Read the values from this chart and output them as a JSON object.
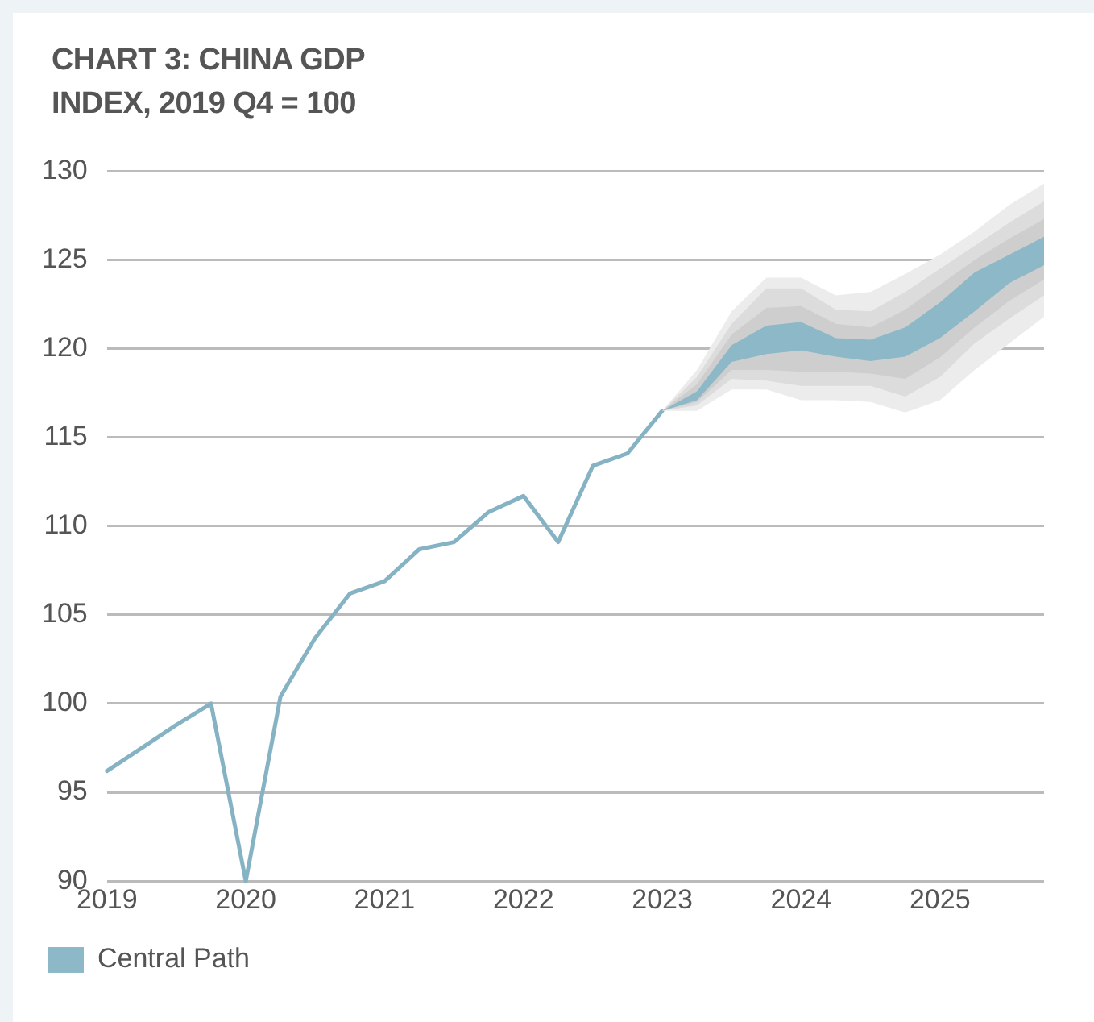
{
  "chart_data": {
    "type": "line",
    "title": "CHART 3: CHINA GDP INDEX, 2019 Q4 = 100",
    "xlim": [
      2019,
      2025.75
    ],
    "xticks": [
      2019,
      2020,
      2021,
      2022,
      2023,
      2024,
      2025
    ],
    "ylim": [
      90,
      130
    ],
    "yticks": [
      90,
      95,
      100,
      105,
      110,
      115,
      120,
      125,
      130
    ],
    "grid": "y",
    "legend": "bottom left",
    "series": [
      {
        "color": "#ececec",
        "x": [
          2023,
          2023.25,
          2023.5,
          2023.75,
          2024,
          2024.25,
          2024.5,
          2024.75,
          2025,
          2025.25,
          2025.5,
          2025.75
        ],
        "values": [
          null,
          null,
          null,
          null,
          null,
          null,
          null,
          null,
          null,
          null,
          null,
          null
        ],
        "lower": [
          116.5,
          116.5,
          117.7,
          117.7,
          117.1,
          117.1,
          117.0,
          116.4,
          117.1,
          118.8,
          120.3,
          121.8
        ],
        "upper": [
          116.5,
          118.8,
          122.1,
          124.0,
          124.0,
          123.0,
          123.2,
          124.2,
          125.3,
          126.6,
          128.1,
          129.3
        ]
      },
      {
        "color": "#dcdcdc",
        "x": [
          2023,
          2023.25,
          2023.5,
          2023.75,
          2024,
          2024.25,
          2024.5,
          2024.75,
          2025,
          2025.25,
          2025.5,
          2025.75
        ],
        "values": [
          null,
          null,
          null,
          null,
          null,
          null,
          null,
          null,
          null,
          null,
          null,
          null
        ],
        "lower": [
          116.5,
          116.8,
          118.3,
          118.2,
          117.9,
          117.9,
          117.9,
          117.3,
          118.4,
          120.3,
          121.7,
          123.0
        ],
        "upper": [
          116.5,
          118.4,
          121.4,
          123.4,
          123.4,
          122.2,
          122.1,
          123.2,
          124.5,
          125.8,
          127.1,
          128.3
        ]
      },
      {
        "color": "#cecece",
        "x": [
          2023,
          2023.25,
          2023.5,
          2023.75,
          2024,
          2024.25,
          2024.5,
          2024.75,
          2025,
          2025.25,
          2025.5,
          2025.75
        ],
        "values": [
          null,
          null,
          null,
          null,
          null,
          null,
          null,
          null,
          null,
          null,
          null,
          null
        ],
        "lower": [
          116.5,
          117.0,
          118.8,
          118.8,
          118.7,
          118.7,
          118.6,
          118.3,
          119.5,
          121.2,
          122.7,
          123.9
        ],
        "upper": [
          116.5,
          118.0,
          120.8,
          122.3,
          122.4,
          121.4,
          121.2,
          122.2,
          123.6,
          125.0,
          126.2,
          127.3
        ]
      },
      {
        "name": "Central Path",
        "color": "#8cb8c8",
        "x": [
          2023,
          2023.25,
          2023.5,
          2023.75,
          2024,
          2024.25,
          2024.5,
          2024.75,
          2025,
          2025.25,
          2025.5,
          2025.75
        ],
        "values": [
          null,
          null,
          null,
          null,
          null,
          null,
          null,
          null,
          null,
          null,
          null,
          null
        ],
        "lower": [
          116.5,
          117.1,
          119.25,
          119.7,
          119.9,
          119.55,
          119.3,
          119.55,
          120.6,
          122.1,
          123.7,
          124.7
        ],
        "upper": [
          116.5,
          117.6,
          120.2,
          121.3,
          121.5,
          120.6,
          120.5,
          121.2,
          122.6,
          124.3,
          125.3,
          126.3
        ]
      },
      {
        "color": "#86b3c4",
        "x": [
          2019,
          2019.25,
          2019.5,
          2019.75,
          2020,
          2020.25,
          2020.5,
          2020.75,
          2021,
          2021.25,
          2021.5,
          2021.75,
          2022,
          2022.25,
          2022.5,
          2022.75,
          2023
        ],
        "values": [
          96.2,
          97.5,
          98.8,
          100.0,
          90.0,
          100.4,
          103.7,
          106.2,
          106.9,
          108.7,
          109.1,
          110.8,
          111.7,
          109.1,
          113.4,
          114.1,
          116.5
        ]
      }
    ]
  }
}
